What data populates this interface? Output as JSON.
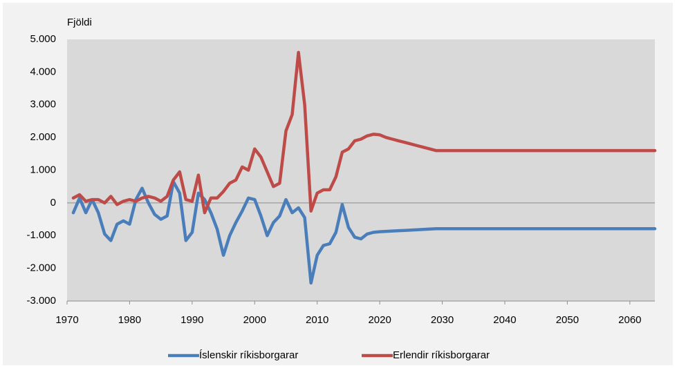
{
  "chart_data": {
    "type": "line",
    "y_label": "Fjöldi",
    "x": [
      1971,
      1972,
      1973,
      1974,
      1975,
      1976,
      1977,
      1978,
      1979,
      1980,
      1981,
      1982,
      1983,
      1984,
      1985,
      1986,
      1987,
      1988,
      1989,
      1990,
      1991,
      1992,
      1993,
      1994,
      1995,
      1996,
      1997,
      1998,
      1999,
      2000,
      2001,
      2002,
      2003,
      2004,
      2005,
      2006,
      2007,
      2008,
      2009,
      2010,
      2011,
      2012,
      2013,
      2014,
      2015,
      2016,
      2017,
      2018,
      2019,
      2020,
      2021,
      2022,
      2023,
      2024,
      2025,
      2026,
      2027,
      2028,
      2029,
      2030,
      2064
    ],
    "series": [
      {
        "name": "Íslenskir ríkisborgarar",
        "color": "#4a7ebb",
        "values": [
          -300,
          150,
          -300,
          100,
          -300,
          -950,
          -1150,
          -650,
          -550,
          -650,
          100,
          450,
          0,
          -350,
          -500,
          -400,
          650,
          300,
          -1150,
          -900,
          300,
          100,
          -300,
          -800,
          -1600,
          -1000,
          -600,
          -250,
          150,
          100,
          -400,
          -1000,
          -600,
          -400,
          100,
          -300,
          -150,
          -450,
          -2450,
          -1600,
          -1300,
          -1250,
          -900,
          -50,
          -750,
          -1050,
          -1100,
          -950,
          -900,
          -880,
          -870,
          -860,
          -850,
          -840,
          -830,
          -820,
          -810,
          -800,
          -790,
          -790,
          -790
        ]
      },
      {
        "name": "Erlendir ríkisborgarar",
        "color": "#be4b48",
        "values": [
          150,
          250,
          50,
          100,
          100,
          0,
          200,
          -50,
          50,
          100,
          50,
          150,
          200,
          150,
          50,
          200,
          700,
          950,
          100,
          50,
          850,
          -300,
          150,
          150,
          350,
          600,
          700,
          1100,
          1000,
          1650,
          1400,
          950,
          500,
          600,
          2200,
          2700,
          4600,
          3000,
          -250,
          300,
          400,
          400,
          800,
          1550,
          1650,
          1900,
          1950,
          2050,
          2100,
          2080,
          2000,
          1950,
          1900,
          1850,
          1800,
          1750,
          1700,
          1650,
          1600,
          1600,
          1600
        ]
      }
    ],
    "xlim": [
      1970,
      2064
    ],
    "xticks": [
      1970,
      1980,
      1990,
      2000,
      2010,
      2020,
      2030,
      2040,
      2050,
      2060
    ],
    "ylim": [
      -3000,
      5000
    ],
    "yticks": [
      {
        "value": -3000,
        "label": "-3.000"
      },
      {
        "value": -2000,
        "label": "-2.000"
      },
      {
        "value": -1000,
        "label": "-1.000"
      },
      0,
      {
        "value": 1000,
        "label": "1.000"
      },
      {
        "value": 2000,
        "label": "2.000"
      },
      {
        "value": 3000,
        "label": "3.000"
      },
      {
        "value": 4000,
        "label": "4.000"
      },
      {
        "value": 5000,
        "label": "5.000"
      }
    ],
    "grid": false,
    "legend": "bottom"
  }
}
